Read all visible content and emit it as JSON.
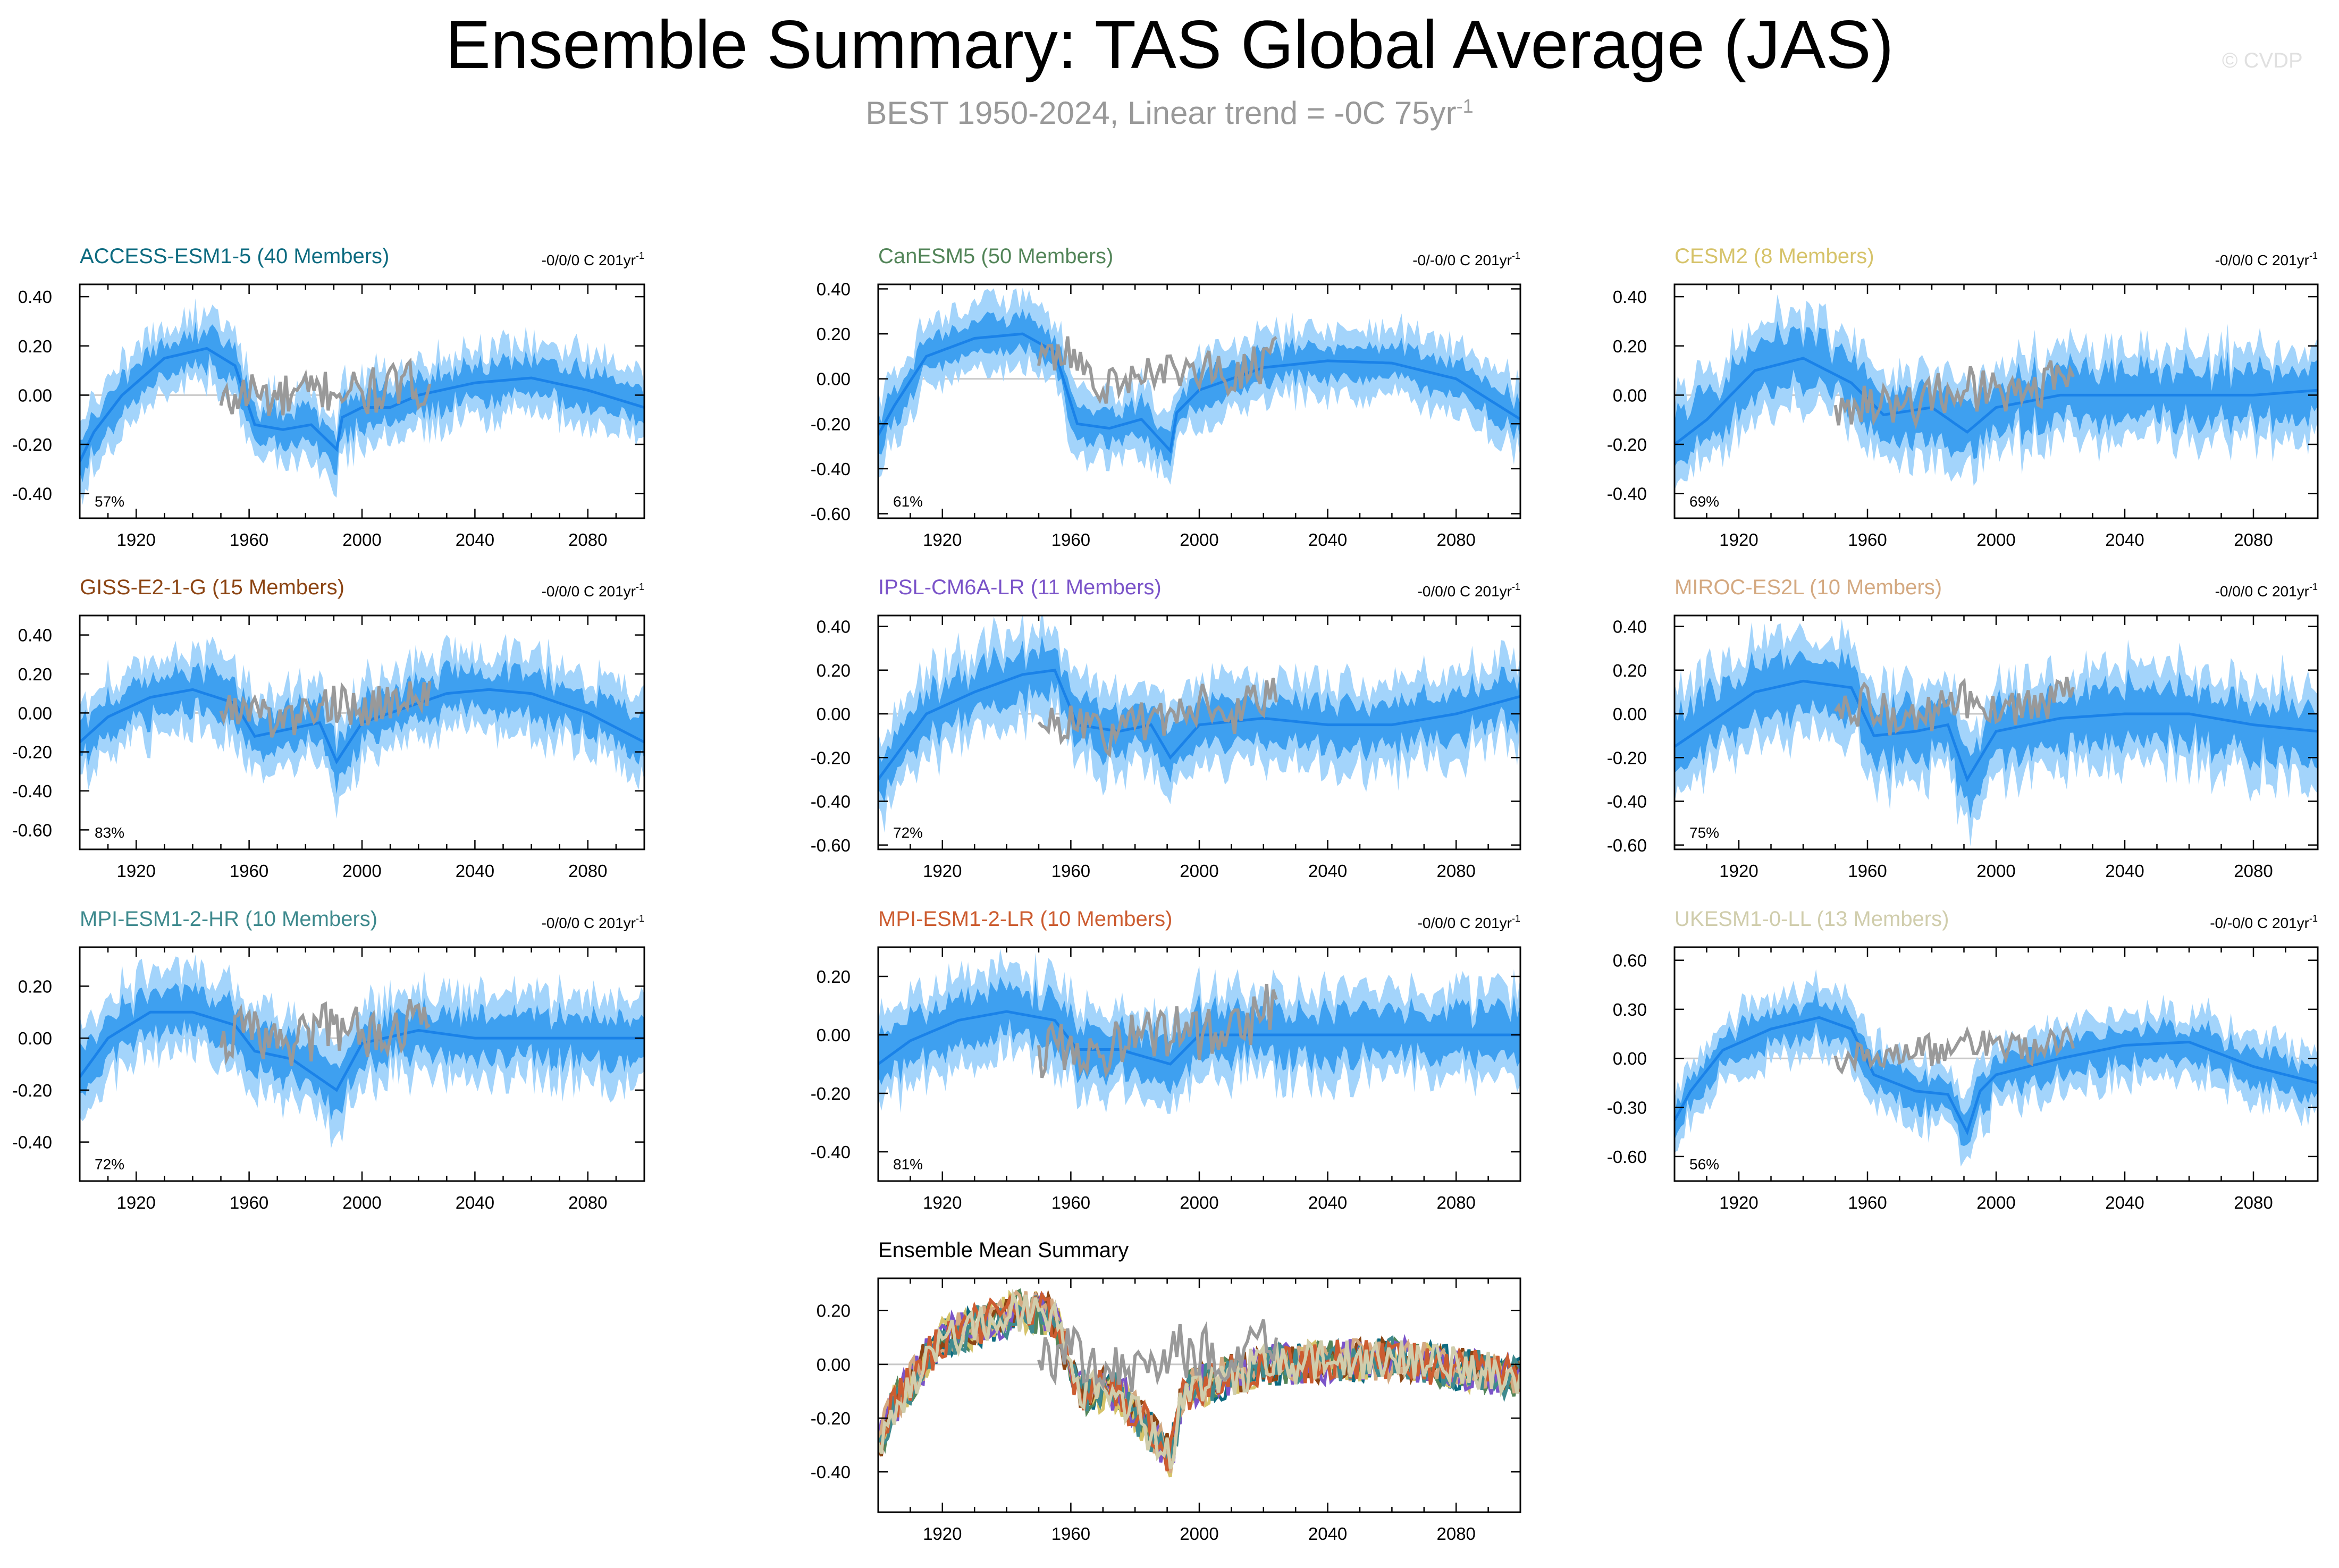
{
  "title": "Ensemble Summary: TAS Global Average (JAS)",
  "subtitle": {
    "text": "BEST 1950-2024, Linear trend = -0C 75yr",
    "sup": "-1"
  },
  "watermark": "© CVDP",
  "colors": {
    "shade_light": "#a3d4fb",
    "shade_dark": "#3ea0f0",
    "mean_line": "#1a82e8",
    "obs_line": "#999999",
    "zero_line": "#c8c8c8",
    "axis": "#000000"
  },
  "x_ticks": [
    "1920",
    "1960",
    "2000",
    "2040",
    "2080"
  ],
  "chart_data": [
    {
      "type": "line",
      "model": "ACCESS-ESM1-5",
      "members": 40,
      "title": "ACCESS-ESM1-5 (40 Members)",
      "title_color": "#0d6b80",
      "trend": "-0/0/0 C 201yr",
      "trend_sup": "-1",
      "percent": "57%",
      "ylim": [
        -0.5,
        0.45
      ],
      "yticks": [
        "0.40",
        "0.20",
        "0.00",
        "-0.20",
        "-0.40"
      ],
      "ytick_values": [
        0.4,
        0.2,
        0,
        -0.2,
        -0.4
      ],
      "x_range": [
        1900,
        2100
      ],
      "mean": {
        "years": [
          1900,
          1905,
          1915,
          1930,
          1945,
          1955,
          1962,
          1972,
          1982,
          1991,
          1993,
          2000,
          2010,
          2020,
          2040,
          2060,
          2080,
          2100
        ],
        "values": [
          -0.27,
          -0.15,
          0.0,
          0.15,
          0.19,
          0.12,
          -0.12,
          -0.14,
          -0.12,
          -0.22,
          -0.09,
          -0.05,
          -0.05,
          0.0,
          0.05,
          0.07,
          0.02,
          -0.05
        ]
      },
      "spread": [
        0.07,
        0.14
      ],
      "obs": {
        "years": [
          1950,
          1960,
          1970,
          1980,
          1990,
          2000,
          2010,
          2024
        ],
        "values": [
          -0.05,
          0.02,
          -0.02,
          0.0,
          0.03,
          0.0,
          0.03,
          0.05
        ]
      }
    },
    {
      "type": "line",
      "model": "CanESM5",
      "members": 50,
      "title": "CanESM5 (50 Members)",
      "title_color": "#538559",
      "trend": "-0/-0/0 C 201yr",
      "trend_sup": "-1",
      "percent": "61%",
      "ylim": [
        -0.62,
        0.42
      ],
      "yticks": [
        "0.40",
        "0.20",
        "0.00",
        "-0.20",
        "-0.40",
        "-0.60"
      ],
      "ytick_values": [
        0.4,
        0.2,
        0,
        -0.2,
        -0.4,
        -0.6
      ],
      "x_range": [
        1900,
        2100
      ],
      "mean": {
        "years": [
          1900,
          1905,
          1915,
          1930,
          1945,
          1955,
          1962,
          1972,
          1982,
          1991,
          1993,
          2000,
          2020,
          2040,
          2060,
          2080,
          2100
        ],
        "values": [
          -0.25,
          -0.12,
          0.1,
          0.18,
          0.2,
          0.12,
          -0.2,
          -0.22,
          -0.18,
          -0.32,
          -0.15,
          -0.05,
          0.05,
          0.08,
          0.07,
          0.0,
          -0.18
        ]
      },
      "spread": [
        0.07,
        0.15
      ],
      "obs": {
        "years": [
          1950,
          1960,
          1970,
          1980,
          1990,
          2000,
          2010,
          2024
        ],
        "values": [
          0.05,
          0.1,
          -0.05,
          0.0,
          0.02,
          0.05,
          0.0,
          0.1
        ]
      }
    },
    {
      "type": "line",
      "model": "CESM2",
      "members": 8,
      "title": "CESM2 (8 Members)",
      "title_color": "#d6c36a",
      "trend": "-0/0/0 C 201yr",
      "trend_sup": "-1",
      "percent": "69%",
      "ylim": [
        -0.5,
        0.45
      ],
      "yticks": [
        "0.40",
        "0.20",
        "0.00",
        "-0.20",
        "-0.40"
      ],
      "ytick_values": [
        0.4,
        0.2,
        0,
        -0.2,
        -0.4
      ],
      "x_range": [
        1900,
        2100
      ],
      "mean": {
        "years": [
          1900,
          1910,
          1925,
          1940,
          1955,
          1965,
          1980,
          1991,
          2000,
          2020,
          2040,
          2060,
          2080,
          2100
        ],
        "values": [
          -0.2,
          -0.1,
          0.1,
          0.15,
          0.05,
          -0.08,
          -0.05,
          -0.15,
          -0.05,
          0.0,
          0.0,
          0.0,
          0.0,
          0.02
        ]
      },
      "spread": [
        0.1,
        0.18
      ],
      "obs": {
        "years": [
          1950,
          1960,
          1970,
          1980,
          1990,
          2000,
          2010,
          2024
        ],
        "values": [
          -0.05,
          0.0,
          -0.05,
          0.0,
          0.03,
          0.02,
          0.0,
          0.1
        ]
      }
    },
    {
      "type": "line",
      "model": "GISS-E2-1-G",
      "members": 15,
      "title": "GISS-E2-1-G (15 Members)",
      "title_color": "#8c4514",
      "trend": "-0/0/0 C 201yr",
      "trend_sup": "-1",
      "percent": "83%",
      "ylim": [
        -0.7,
        0.5
      ],
      "yticks": [
        "0.40",
        "0.20",
        "0.00",
        "-0.20",
        "-0.40",
        "-0.60"
      ],
      "ytick_values": [
        0.4,
        0.2,
        0,
        -0.2,
        -0.4,
        -0.6
      ],
      "x_range": [
        1900,
        2100
      ],
      "mean": {
        "years": [
          1900,
          1910,
          1925,
          1940,
          1955,
          1962,
          1975,
          1985,
          1991,
          2000,
          2020,
          2030,
          2045,
          2060,
          2080,
          2100
        ],
        "values": [
          -0.15,
          -0.02,
          0.08,
          0.12,
          0.05,
          -0.12,
          -0.08,
          -0.05,
          -0.25,
          -0.05,
          0.05,
          0.1,
          0.12,
          0.1,
          0.0,
          -0.15
        ]
      },
      "spread": [
        0.1,
        0.2
      ],
      "obs": {
        "years": [
          1950,
          1960,
          1970,
          1980,
          1990,
          2000,
          2010,
          2024
        ],
        "values": [
          0.0,
          0.05,
          -0.05,
          0.0,
          0.05,
          0.02,
          0.05,
          0.1
        ]
      }
    },
    {
      "type": "line",
      "model": "IPSL-CM6A-LR",
      "members": 11,
      "title": "IPSL-CM6A-LR (11 Members)",
      "title_color": "#7b54c9",
      "trend": "-0/0/0 C 201yr",
      "trend_sup": "-1",
      "percent": "72%",
      "ylim": [
        -0.62,
        0.45
      ],
      "yticks": [
        "0.40",
        "0.20",
        "0.00",
        "-0.20",
        "-0.40",
        "-0.60"
      ],
      "ytick_values": [
        0.4,
        0.2,
        0,
        -0.2,
        -0.4,
        -0.6
      ],
      "x_range": [
        1900,
        2100
      ],
      "mean": {
        "years": [
          1900,
          1905,
          1915,
          1930,
          1945,
          1955,
          1962,
          1975,
          1985,
          1991,
          2000,
          2020,
          2040,
          2060,
          2080,
          2100
        ],
        "values": [
          -0.3,
          -0.2,
          0.0,
          0.1,
          0.18,
          0.2,
          -0.05,
          -0.08,
          -0.05,
          -0.2,
          -0.05,
          -0.02,
          -0.05,
          -0.05,
          0.0,
          0.08
        ]
      },
      "spread": [
        0.1,
        0.2
      ],
      "obs": {
        "years": [
          1950,
          1960,
          1970,
          1980,
          1990,
          2000,
          2010,
          2024
        ],
        "values": [
          -0.05,
          -0.05,
          -0.1,
          -0.05,
          0.0,
          0.05,
          0.0,
          0.1
        ]
      }
    },
    {
      "type": "line",
      "model": "MIROC-ES2L",
      "members": 10,
      "title": "MIROC-ES2L (10 Members)",
      "title_color": "#d4a981",
      "trend": "-0/0/0 C 201yr",
      "trend_sup": "-1",
      "percent": "75%",
      "ylim": [
        -0.62,
        0.45
      ],
      "yticks": [
        "0.40",
        "0.20",
        "0.00",
        "-0.20",
        "-0.40",
        "-0.60"
      ],
      "ytick_values": [
        0.4,
        0.2,
        0,
        -0.2,
        -0.4,
        -0.6
      ],
      "x_range": [
        1900,
        2100
      ],
      "mean": {
        "years": [
          1900,
          1910,
          1925,
          1940,
          1955,
          1962,
          1975,
          1985,
          1991,
          2000,
          2020,
          2040,
          2060,
          2080,
          2100
        ],
        "values": [
          -0.15,
          -0.05,
          0.1,
          0.15,
          0.12,
          -0.1,
          -0.08,
          -0.05,
          -0.3,
          -0.08,
          -0.02,
          0.0,
          0.0,
          -0.05,
          -0.08
        ]
      },
      "spread": [
        0.12,
        0.22
      ],
      "obs": {
        "years": [
          1950,
          1960,
          1970,
          1980,
          1990,
          2000,
          2010,
          2024
        ],
        "values": [
          0.0,
          0.05,
          -0.05,
          0.0,
          0.05,
          0.05,
          0.02,
          0.08
        ]
      }
    },
    {
      "type": "line",
      "model": "MPI-ESM1-2-HR",
      "members": 10,
      "title": "MPI-ESM1-2-HR (10 Members)",
      "title_color": "#3f8a8e",
      "trend": "-0/0/0 C 201yr",
      "trend_sup": "-1",
      "percent": "72%",
      "ylim": [
        -0.55,
        0.35
      ],
      "yticks": [
        "0.20",
        "0.00",
        "-0.20",
        "-0.40"
      ],
      "ytick_values": [
        0.2,
        0,
        -0.2,
        -0.4
      ],
      "x_range": [
        1900,
        2100
      ],
      "mean": {
        "years": [
          1900,
          1910,
          1925,
          1940,
          1955,
          1962,
          1975,
          1991,
          2000,
          2020,
          2040,
          2060,
          2080,
          2100
        ],
        "values": [
          -0.15,
          0.0,
          0.1,
          0.1,
          0.05,
          -0.05,
          -0.08,
          -0.2,
          -0.02,
          0.03,
          0.0,
          0.0,
          0.0,
          0.0
        ]
      },
      "spread": [
        0.08,
        0.16
      ],
      "obs": {
        "years": [
          1950,
          1960,
          1970,
          1980,
          1990,
          2000,
          2010,
          2024
        ],
        "values": [
          -0.05,
          0.05,
          -0.02,
          0.0,
          0.05,
          0.02,
          0.03,
          0.12
        ]
      }
    },
    {
      "type": "line",
      "model": "MPI-ESM1-2-LR",
      "members": 10,
      "title": "MPI-ESM1-2-LR (10 Members)",
      "title_color": "#cc5c30",
      "trend": "-0/0/0 C 201yr",
      "trend_sup": "-1",
      "percent": "81%",
      "ylim": [
        -0.5,
        0.3
      ],
      "yticks": [
        "0.20",
        "0.00",
        "-0.20",
        "-0.40"
      ],
      "ytick_values": [
        0.2,
        0,
        -0.2,
        -0.4
      ],
      "x_range": [
        1900,
        2100
      ],
      "mean": {
        "years": [
          1900,
          1910,
          1925,
          1940,
          1955,
          1962,
          1975,
          1991,
          2000,
          2020,
          2040,
          2060,
          2080,
          2100
        ],
        "values": [
          -0.1,
          -0.02,
          0.05,
          0.08,
          0.05,
          -0.05,
          -0.05,
          -0.1,
          0.0,
          0.0,
          0.0,
          0.0,
          0.0,
          0.0
        ]
      },
      "spread": [
        0.08,
        0.15
      ],
      "obs": {
        "years": [
          1950,
          1960,
          1970,
          1980,
          1990,
          2000,
          2010,
          2024
        ],
        "values": [
          -0.05,
          -0.03,
          -0.05,
          -0.02,
          0.02,
          0.0,
          0.02,
          0.1
        ]
      }
    },
    {
      "type": "line",
      "model": "UKESM1-0-LL",
      "members": 13,
      "title": "UKESM1-0-LL (13 Members)",
      "title_color": "#d0cdac",
      "trend": "-0/-0/0 C 201yr",
      "trend_sup": "-1",
      "percent": "56%",
      "ylim": [
        -0.75,
        0.68
      ],
      "yticks": [
        "0.60",
        "0.30",
        "0.00",
        "-0.30",
        "-0.60"
      ],
      "ytick_values": [
        0.6,
        0.3,
        0,
        -0.3,
        -0.6
      ],
      "x_range": [
        1900,
        2100
      ],
      "mean": {
        "years": [
          1900,
          1905,
          1915,
          1930,
          1945,
          1955,
          1962,
          1975,
          1985,
          1991,
          1995,
          2000,
          2020,
          2040,
          2060,
          2080,
          2100
        ],
        "values": [
          -0.38,
          -0.2,
          0.05,
          0.18,
          0.25,
          0.18,
          -0.1,
          -0.2,
          -0.22,
          -0.45,
          -0.2,
          -0.1,
          0.0,
          0.08,
          0.1,
          -0.05,
          -0.15
        ]
      },
      "spread": [
        0.1,
        0.2
      ],
      "obs": {
        "years": [
          1950,
          1960,
          1970,
          1980,
          1990,
          2000,
          2010,
          2024
        ],
        "values": [
          0.0,
          0.05,
          0.0,
          0.05,
          0.1,
          0.1,
          0.05,
          0.15
        ]
      }
    },
    {
      "type": "line",
      "model": "Ensemble Mean Summary",
      "title": "Ensemble Mean Summary",
      "title_color": "#000000",
      "ylim": [
        -0.55,
        0.32
      ],
      "yticks": [
        "0.20",
        "0.00",
        "-0.20",
        "-0.40"
      ],
      "ytick_values": [
        0.2,
        0,
        -0.2,
        -0.4
      ],
      "x_range": [
        1900,
        2100
      ],
      "series": [
        {
          "name": "ACCESS-ESM1-5",
          "color": "#0d6b80"
        },
        {
          "name": "CanESM5",
          "color": "#538559"
        },
        {
          "name": "CESM2",
          "color": "#d6c36a"
        },
        {
          "name": "GISS-E2-1-G",
          "color": "#8c4514"
        },
        {
          "name": "IPSL-CM6A-LR",
          "color": "#7b54c9"
        },
        {
          "name": "MIROC-ES2L",
          "color": "#d4a981"
        },
        {
          "name": "MPI-ESM1-2-HR",
          "color": "#3f8a8e"
        },
        {
          "name": "MPI-ESM1-2-LR",
          "color": "#cc5c30"
        },
        {
          "name": "UKESM1-0-LL",
          "color": "#d0cdac"
        }
      ],
      "obs": {
        "years": [
          1950,
          1960,
          1970,
          1980,
          1990,
          2000,
          2010,
          2024
        ],
        "values": [
          0.0,
          0.05,
          -0.05,
          0.0,
          0.05,
          0.05,
          0.0,
          0.1
        ]
      }
    }
  ]
}
